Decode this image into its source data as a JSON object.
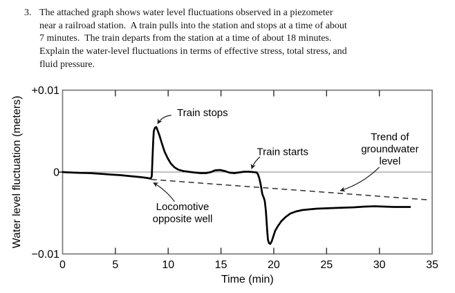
{
  "question": {
    "number": "3.",
    "lines": [
      "The attached graph shows water level fluctuations observed in a piezometer",
      "near a railroad station.  A train pulls into the station and stops at a time of about",
      "7 minutes.  The train departs from the station at a time of about 18 minutes.",
      "Explain the water-level fluctuations in terms of effective stress, total stress, and",
      "fluid pressure."
    ]
  },
  "chart_data": {
    "type": "line",
    "title": "",
    "xlabel": "Time (min)",
    "ylabel": "Water level fluctuation (meters)",
    "xlim": [
      0,
      35
    ],
    "ylim": [
      -0.01,
      0.01
    ],
    "xticks": [
      0,
      5,
      10,
      15,
      20,
      25,
      30,
      35
    ],
    "xtick_labels": [
      "0",
      "5",
      "10",
      "15",
      "20",
      "25",
      "30",
      "35"
    ],
    "yticks": [
      0.01,
      0,
      -0.01
    ],
    "ytick_labels": [
      "+0.01",
      "0",
      "−0.01"
    ],
    "grid": false,
    "legend": "none",
    "series": [
      {
        "name": "water level fluctuation",
        "points": [
          [
            0,
            0
          ],
          [
            0.6,
            -4e-05
          ],
          [
            1.6,
            -0.0001
          ],
          [
            2.6,
            -0.00013
          ],
          [
            3.6,
            -0.00021
          ],
          [
            4.6,
            -0.0003
          ],
          [
            5.5,
            -0.00038
          ],
          [
            6.5,
            -0.00051
          ],
          [
            7.5,
            -0.00063
          ],
          [
            8.0,
            -0.00072
          ],
          [
            8.35,
            -0.0008
          ],
          [
            8.45,
            -0.0005
          ],
          [
            8.51,
            0.0016
          ],
          [
            8.58,
            0.0037
          ],
          [
            8.64,
            0.005
          ],
          [
            8.74,
            0.0054
          ],
          [
            8.87,
            0.0055
          ],
          [
            9.0,
            0.0051
          ],
          [
            9.17,
            0.0045
          ],
          [
            9.4,
            0.0035
          ],
          [
            9.66,
            0.0025
          ],
          [
            9.95,
            0.0017
          ],
          [
            10.25,
            0.00105
          ],
          [
            10.58,
            0.00059
          ],
          [
            10.97,
            0.00029
          ],
          [
            11.43,
            0.00013
          ],
          [
            11.89,
            4e-05
          ],
          [
            12.41,
            -4e-05
          ],
          [
            13.06,
            -0.00013
          ],
          [
            13.59,
            -0.00013
          ],
          [
            14.05,
            0
          ],
          [
            14.44,
            0.00021
          ],
          [
            14.9,
            0.00025
          ],
          [
            15.36,
            0.00013
          ],
          [
            15.81,
            -8e-05
          ],
          [
            16.27,
            -0.00013
          ],
          [
            16.73,
            -4e-05
          ],
          [
            17.19,
            4e-05
          ],
          [
            17.65,
            4e-05
          ],
          [
            18.04,
            0
          ],
          [
            18.37,
            -4e-05
          ],
          [
            18.5,
            -0.00025
          ],
          [
            18.63,
            -0.00076
          ],
          [
            18.76,
            -0.00152
          ],
          [
            18.86,
            -0.00228
          ],
          [
            18.92,
            -0.0027
          ],
          [
            19.05,
            -0.00312
          ],
          [
            19.15,
            -0.00354
          ],
          [
            19.25,
            -0.00473
          ],
          [
            19.32,
            -0.00599
          ],
          [
            19.38,
            -0.00726
          ],
          [
            19.45,
            -0.00827
          ],
          [
            19.55,
            -0.00869
          ],
          [
            19.68,
            -0.00877
          ],
          [
            19.81,
            -0.00844
          ],
          [
            19.94,
            -0.00793
          ],
          [
            20.13,
            -0.00717
          ],
          [
            20.4,
            -0.00658
          ],
          [
            20.72,
            -0.00599
          ],
          [
            21.12,
            -0.00549
          ],
          [
            21.57,
            -0.00506
          ],
          [
            22.1,
            -0.00481
          ],
          [
            22.69,
            -0.00464
          ],
          [
            23.34,
            -0.00456
          ],
          [
            24.06,
            -0.00447
          ],
          [
            24.85,
            -0.00443
          ],
          [
            25.7,
            -0.00439
          ],
          [
            26.62,
            -0.00435
          ],
          [
            27.6,
            -0.0043
          ],
          [
            28.58,
            -0.00422
          ],
          [
            29.56,
            -0.00418
          ],
          [
            30.48,
            -0.00422
          ],
          [
            31.4,
            -0.00426
          ],
          [
            32.18,
            -0.00426
          ],
          [
            32.9,
            -0.00426
          ]
        ]
      }
    ],
    "trend_line": {
      "name": "Trend of groundwater level",
      "style": "dashed",
      "start": [
        8.4,
        -0.0009
      ],
      "end": [
        34.7,
        -0.0034
      ]
    },
    "zero_line": true,
    "annotations": [
      {
        "id": "train-stops",
        "lines": [
          "Train stops"
        ],
        "label_pos": {
          "t": 13.25,
          "v": 0.00684
        },
        "arrow": {
          "from": {
            "t": 10.3,
            "v": 0.00693
          },
          "to": {
            "t": 9.0,
            "v": 0.0059
          },
          "bend": 6
        }
      },
      {
        "id": "locomotive-opposite-well",
        "lines": [
          "Locomotive",
          "opposite well"
        ],
        "label_pos": {
          "t": 11.36,
          "v": -0.00464
        },
        "arrow": {
          "from": {
            "t": 10.6,
            "v": -0.0036
          },
          "to": {
            "t": 8.6,
            "v": -0.0013
          },
          "bend": 4
        }
      },
      {
        "id": "train-starts",
        "lines": [
          "Train starts"
        ],
        "label_pos": {
          "t": 20.84,
          "v": 0.00208
        },
        "arrow": {
          "from": {
            "t": 18.7,
            "v": 0.00186
          },
          "to": {
            "t": 17.9,
            "v": 0.0004
          },
          "bend": 3
        }
      },
      {
        "id": "trend-of-groundwater-level",
        "lines": [
          "Trend of",
          "groundwater",
          "level"
        ],
        "label_pos": {
          "t": 31.0,
          "v": 0.00388
        },
        "arrow": {
          "from": {
            "t": 30.0,
            "v": 0.0006
          },
          "to": {
            "t": 26.3,
            "v": -0.00228
          },
          "bend": -8
        }
      }
    ],
    "colors": {
      "curve": "#000000",
      "frame": "#7a7a7a",
      "zero_line": "#9c9c9c",
      "trend": "#2e2e2e",
      "arrow": "#1a1a1a",
      "text": "#000000",
      "background": "#ffffff"
    }
  }
}
